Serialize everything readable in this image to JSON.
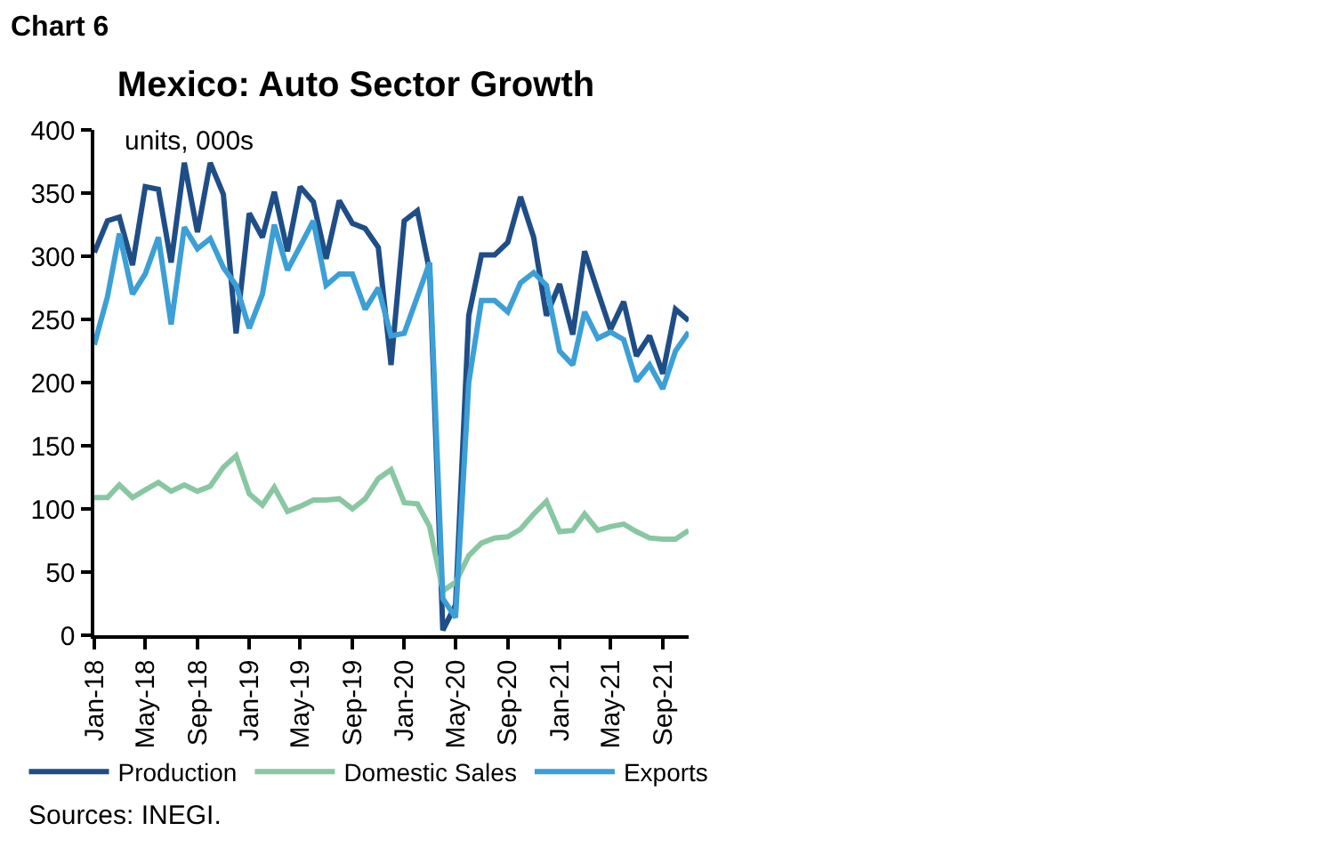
{
  "chart_data": {
    "type": "line",
    "title": "Mexico: Auto Sector Growth",
    "ylabel": "units, 000s",
    "annotations": [
      "Chart 6",
      "Sources: INEGI."
    ],
    "x": [
      "2018-01",
      "2018-02",
      "2018-03",
      "2018-04",
      "2018-05",
      "2018-06",
      "2018-07",
      "2018-08",
      "2018-09",
      "2018-10",
      "2018-11",
      "2018-12",
      "2019-01",
      "2019-02",
      "2019-03",
      "2019-04",
      "2019-05",
      "2019-06",
      "2019-07",
      "2019-08",
      "2019-09",
      "2019-10",
      "2019-11",
      "2019-12",
      "2020-01",
      "2020-02",
      "2020-03",
      "2020-04",
      "2020-05",
      "2020-06",
      "2020-07",
      "2020-08",
      "2020-09",
      "2020-10",
      "2020-11",
      "2020-12",
      "2021-01",
      "2021-02",
      "2021-03",
      "2021-04",
      "2021-05",
      "2021-06",
      "2021-07",
      "2021-08",
      "2021-09",
      "2021-10",
      "2021-11"
    ],
    "series": [
      {
        "name": "Production",
        "color": "#1f4e87",
        "values": [
          303,
          328,
          331,
          293,
          355,
          353,
          295,
          374,
          319,
          374,
          349,
          239,
          334,
          315,
          351,
          304,
          355,
          343,
          298,
          344,
          326,
          322,
          307,
          214,
          328,
          336,
          288,
          4,
          24,
          253,
          301,
          301,
          311,
          347,
          315,
          253,
          278,
          238,
          304,
          272,
          242,
          264,
          221,
          237,
          207,
          258,
          249
        ]
      },
      {
        "name": "Domestic Sales",
        "color": "#88c7a2",
        "values": [
          109,
          109,
          119,
          109,
          115,
          121,
          114,
          119,
          114,
          118,
          133,
          142,
          112,
          103,
          117,
          98,
          102,
          107,
          107,
          108,
          100,
          108,
          124,
          131,
          105,
          104,
          86,
          35,
          42,
          63,
          73,
          77,
          78,
          84,
          96,
          106,
          82,
          83,
          96,
          83,
          86,
          88,
          82,
          77,
          76,
          76,
          83
        ]
      },
      {
        "name": "Exports",
        "color": "#3c9fd6",
        "values": [
          230,
          268,
          318,
          270,
          286,
          315,
          246,
          323,
          306,
          314,
          291,
          277,
          243,
          270,
          325,
          289,
          308,
          328,
          277,
          286,
          286,
          258,
          275,
          237,
          239,
          268,
          295,
          29,
          14,
          200,
          265,
          265,
          256,
          279,
          287,
          277,
          225,
          214,
          256,
          235,
          240,
          234,
          201,
          214,
          195,
          225,
          240
        ]
      }
    ],
    "xlim": [
      "2018-01",
      "2021-11"
    ],
    "xticks": [
      {
        "value": "2018-01",
        "label": "Jan-18"
      },
      {
        "value": "2018-05",
        "label": "May-18"
      },
      {
        "value": "2018-09",
        "label": "Sep-18"
      },
      {
        "value": "2019-01",
        "label": "Jan-19"
      },
      {
        "value": "2019-05",
        "label": "May-19"
      },
      {
        "value": "2019-09",
        "label": "Sep-19"
      },
      {
        "value": "2020-01",
        "label": "Jan-20"
      },
      {
        "value": "2020-05",
        "label": "May-20"
      },
      {
        "value": "2020-09",
        "label": "Sep-20"
      },
      {
        "value": "2021-01",
        "label": "Jan-21"
      },
      {
        "value": "2021-05",
        "label": "May-21"
      },
      {
        "value": "2021-09",
        "label": "Sep-21"
      }
    ],
    "ylim": [
      0,
      400
    ],
    "yticks": [
      0,
      50,
      100,
      150,
      200,
      250,
      300,
      350,
      400
    ],
    "grid": false,
    "legend": "bottom",
    "marker": "none",
    "line_style": "solid"
  }
}
